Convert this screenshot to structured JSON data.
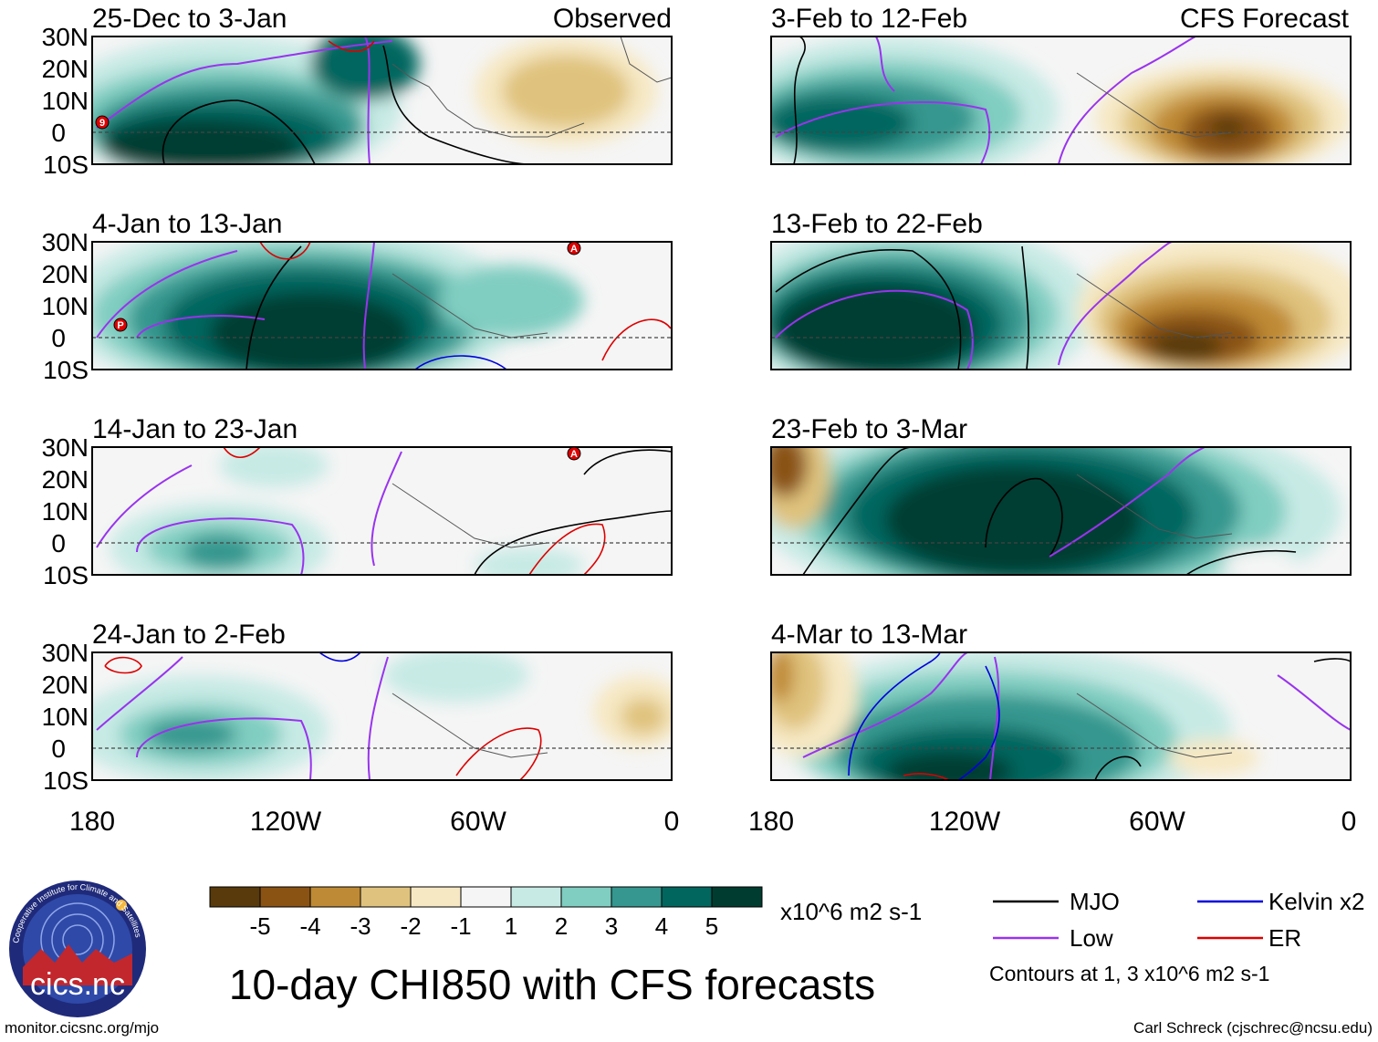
{
  "panels_left": [
    {
      "date": "25-Dec to 3-Jan",
      "tag": "Observed"
    },
    {
      "date": "4-Jan to 13-Jan",
      "tag": ""
    },
    {
      "date": "14-Jan to 23-Jan",
      "tag": ""
    },
    {
      "date": "24-Jan to 2-Feb",
      "tag": ""
    }
  ],
  "panels_right": [
    {
      "date": "3-Feb to 12-Feb",
      "tag": "CFS Forecast"
    },
    {
      "date": "13-Feb to 22-Feb",
      "tag": ""
    },
    {
      "date": "23-Feb to 3-Mar",
      "tag": ""
    },
    {
      "date": "4-Mar to 13-Mar",
      "tag": ""
    }
  ],
  "lat_labels": [
    "30N",
    "20N",
    "10N",
    "0",
    "10S"
  ],
  "lon_labels": [
    "180",
    "120W",
    "60W",
    "0"
  ],
  "markers": [
    {
      "panel": "left-0",
      "letter": "9"
    },
    {
      "panel": "left-1",
      "letter": "P"
    },
    {
      "panel": "left-1",
      "letter": "A"
    },
    {
      "panel": "left-2",
      "letter": "A"
    }
  ],
  "colorbar": {
    "labels": [
      "-5",
      "-4",
      "-3",
      "-2",
      "-1",
      "1",
      "2",
      "3",
      "4",
      "5"
    ],
    "colors": [
      "#583a0c",
      "#8a5213",
      "#bf8a35",
      "#dfc27d",
      "#f6e8c3",
      "#f5f5f5",
      "#c7eae5",
      "#80cdc1",
      "#35978f",
      "#01665e",
      "#003c30"
    ],
    "units": "x10^6 m2 s-1"
  },
  "legend": {
    "items": [
      {
        "label": "MJO",
        "color": "#000000"
      },
      {
        "label": "Kelvin x2",
        "color": "#0000dd"
      },
      {
        "label": "Low",
        "color": "#9933ee"
      },
      {
        "label": "ER",
        "color": "#dd0000"
      }
    ],
    "note": "Contours at 1, 3 x10^6 m2 s-1"
  },
  "logo": {
    "text": "cics.nc",
    "ring_text": "Cooperative Institute for Climate and Satellites"
  },
  "title": "10-day CHI850 with CFS forecasts",
  "footer_left": "monitor.cicsnc.org/mjo",
  "footer_right": "Carl Schreck (cjschrec@ncsu.edu)"
}
